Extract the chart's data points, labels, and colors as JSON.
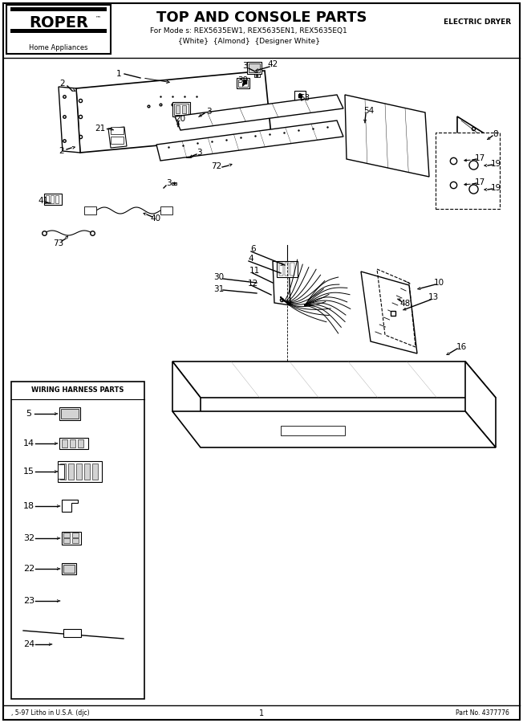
{
  "title": "TOP AND CONSOLE PARTS",
  "subtitle_line1": "For Mode s: REX5635EW1, REX5635EN1, REX5635EQ1",
  "subtitle_line2": "{White}  {Almond}  {Designer White}",
  "brand": "ROPER",
  "brand_sub": "Home Appliances",
  "right_header": "ELECTRIC DRYER",
  "footer_left": ", 5-97 Litho in U.S.A. (djc)",
  "footer_center": "1",
  "footer_right": "Part No. 4377776",
  "wiring_box_title": "WIRING HARNESS PARTS",
  "bg_color": "#ffffff",
  "border_color": "#000000",
  "text_color": "#000000",
  "fig_width": 6.52,
  "fig_height": 9.0,
  "dpi": 100
}
